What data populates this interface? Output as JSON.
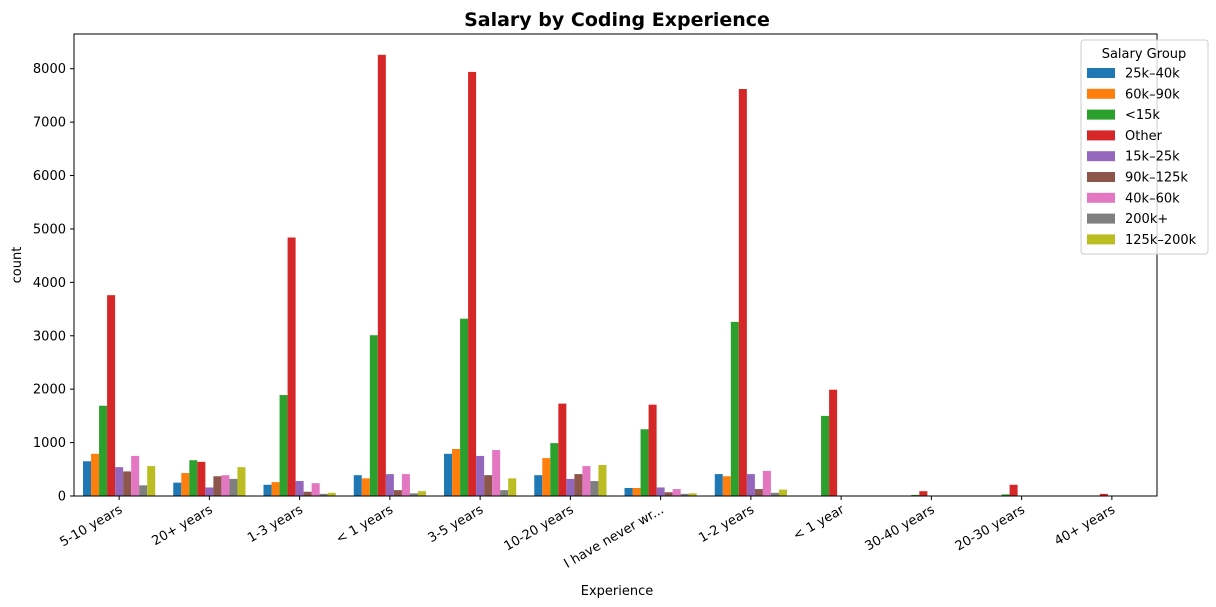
{
  "chart_data": {
    "type": "bar",
    "title": "Salary by Coding Experience",
    "xlabel": "Experience",
    "ylabel": "count",
    "ylim": [
      0,
      8650
    ],
    "yticks": [
      0,
      1000,
      2000,
      3000,
      4000,
      5000,
      6000,
      7000,
      8000
    ],
    "grid": false,
    "legend_title": "Salary Group",
    "legend_position": "top-right",
    "categories": [
      "5-10 years",
      "20+ years",
      "1-3 years",
      "< 1 years",
      "3-5 years",
      "10-20 years",
      "I have never wr...",
      "1-2 years",
      "< 1 year",
      "30-40 years",
      "20-30 years",
      "40+ years"
    ],
    "series": [
      {
        "name": "25k–40k",
        "color": "#1f77b4",
        "values": [
          650,
          250,
          210,
          390,
          790,
          390,
          150,
          410,
          0,
          0,
          0,
          0
        ]
      },
      {
        "name": "60k–90k",
        "color": "#ff7f0e",
        "values": [
          790,
          430,
          260,
          330,
          880,
          710,
          150,
          370,
          0,
          0,
          0,
          0
        ]
      },
      {
        "name": "<15k",
        "color": "#2ca02c",
        "values": [
          1690,
          670,
          1890,
          3010,
          3320,
          990,
          1250,
          3260,
          1500,
          20,
          30,
          10
        ]
      },
      {
        "name": "Other",
        "color": "#d62728",
        "values": [
          3760,
          640,
          4840,
          8260,
          7940,
          1730,
          1710,
          7620,
          1990,
          90,
          210,
          40
        ]
      },
      {
        "name": "15k–25k",
        "color": "#9467bd",
        "values": [
          540,
          160,
          280,
          410,
          750,
          320,
          160,
          410,
          0,
          0,
          0,
          0
        ]
      },
      {
        "name": "90k–125k",
        "color": "#8c564b",
        "values": [
          460,
          370,
          80,
          110,
          390,
          410,
          70,
          130,
          0,
          0,
          0,
          0
        ]
      },
      {
        "name": "40k–60k",
        "color": "#e377c2",
        "values": [
          750,
          390,
          240,
          410,
          860,
          560,
          130,
          470,
          0,
          0,
          0,
          0
        ]
      },
      {
        "name": "200k+",
        "color": "#7f7f7f",
        "values": [
          200,
          320,
          40,
          50,
          110,
          280,
          40,
          60,
          0,
          0,
          0,
          0
        ]
      },
      {
        "name": "125k–200k",
        "color": "#bcbd22",
        "values": [
          560,
          540,
          60,
          90,
          330,
          580,
          50,
          120,
          0,
          0,
          0,
          0
        ]
      }
    ]
  }
}
